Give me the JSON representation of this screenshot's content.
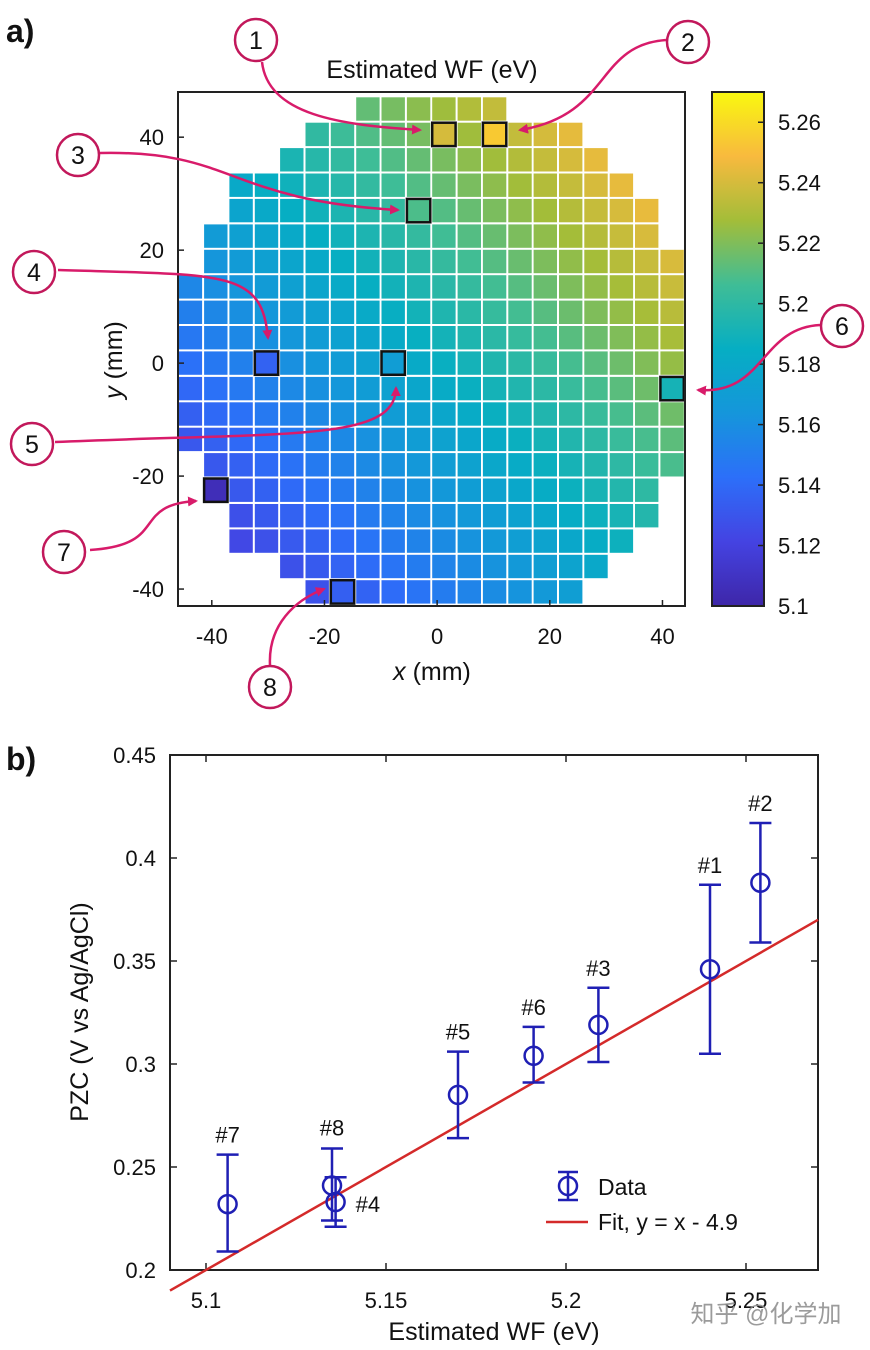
{
  "panel_a": {
    "label": "a)",
    "chart_data": {
      "type": "heatmap",
      "title": "Estimated WF (eV)",
      "xlabel_var": "x",
      "xlabel_unit": " (mm)",
      "ylabel_var": "y",
      "ylabel_unit": " (mm)",
      "xlim": [
        -46,
        44
      ],
      "ylim": [
        -43,
        48
      ],
      "xticks": [
        -40,
        -20,
        0,
        20,
        40
      ],
      "yticks": [
        -40,
        -20,
        0,
        20,
        40
      ],
      "grid_pitch_mm": 4.5,
      "wafer_radius_mm": 47,
      "value_model": "WF = 5.185 + 0.00095*x + 0.0009*y (approx. linear gradient)",
      "colorbar": {
        "colormap": "parula",
        "clim": [
          5.1,
          5.27
        ],
        "ticks": [
          5.1,
          5.12,
          5.14,
          5.16,
          5.18,
          5.2,
          5.22,
          5.24,
          5.26
        ],
        "tick_labels": [
          "5.1",
          "5.12",
          "5.14",
          "5.16",
          "5.18",
          "5.2",
          "5.22",
          "5.24",
          "5.26"
        ]
      },
      "marked_cells": [
        {
          "id": "1",
          "x": 1.2,
          "y": 40.5,
          "value": 5.24
        },
        {
          "id": "2",
          "x": 10.2,
          "y": 40.5,
          "value": 5.254
        },
        {
          "id": "3",
          "x": -3.3,
          "y": 27.0,
          "value": 5.209
        },
        {
          "id": "4",
          "x": -30.3,
          "y": 0.0,
          "value": 5.136
        },
        {
          "id": "5",
          "x": -7.8,
          "y": 0.0,
          "value": 5.17
        },
        {
          "id": "6",
          "x": 41.7,
          "y": -4.5,
          "value": 5.191
        },
        {
          "id": "7",
          "x": -39.3,
          "y": -22.5,
          "value": 5.106
        },
        {
          "id": "8",
          "x": -16.8,
          "y": -40.5,
          "value": 5.135
        }
      ],
      "callouts": [
        "1",
        "2",
        "3",
        "4",
        "5",
        "6",
        "7",
        "8"
      ]
    }
  },
  "panel_b": {
    "label": "b)",
    "chart_data": {
      "type": "scatter",
      "xlabel": "Estimated WF (eV)",
      "ylabel": "PZC (V vs Ag/AgCl)",
      "xlim": [
        5.09,
        5.27
      ],
      "ylim": [
        0.2,
        0.45
      ],
      "xticks": [
        5.1,
        5.15,
        5.2,
        5.25
      ],
      "xtick_labels": [
        "5.1",
        "5.15",
        "5.2",
        "5.25"
      ],
      "yticks": [
        0.2,
        0.25,
        0.3,
        0.35,
        0.4,
        0.45
      ],
      "ytick_labels": [
        "0.2",
        "0.25",
        "0.3",
        "0.35",
        "0.4",
        "0.45"
      ],
      "series": [
        {
          "name": "Data",
          "marker": "circle-with-errorbars",
          "color": "#1f1fb4",
          "points": [
            {
              "label": "#7",
              "x": 5.106,
              "y": 0.232,
              "err_low": 0.209,
              "err_high": 0.256
            },
            {
              "label": "#8",
              "x": 5.135,
              "y": 0.241,
              "err_low": 0.224,
              "err_high": 0.259
            },
            {
              "label": "#4",
              "x": 5.136,
              "y": 0.233,
              "err_low": 0.221,
              "err_high": 0.245
            },
            {
              "label": "#5",
              "x": 5.17,
              "y": 0.285,
              "err_low": 0.264,
              "err_high": 0.306
            },
            {
              "label": "#6",
              "x": 5.191,
              "y": 0.304,
              "err_low": 0.291,
              "err_high": 0.318
            },
            {
              "label": "#3",
              "x": 5.209,
              "y": 0.319,
              "err_low": 0.301,
              "err_high": 0.337
            },
            {
              "label": "#1",
              "x": 5.24,
              "y": 0.346,
              "err_low": 0.305,
              "err_high": 0.387
            },
            {
              "label": "#2",
              "x": 5.254,
              "y": 0.388,
              "err_low": 0.359,
              "err_high": 0.417
            }
          ]
        },
        {
          "name": "Fit, y = x - 4.9",
          "type": "line",
          "color": "#d42a2a",
          "slope": 1,
          "intercept": -4.9
        }
      ],
      "legend": {
        "position": "bottom-right",
        "entries": [
          "Data",
          "Fit, y = x - 4.9"
        ]
      }
    }
  },
  "watermark": "知乎 @化学加"
}
